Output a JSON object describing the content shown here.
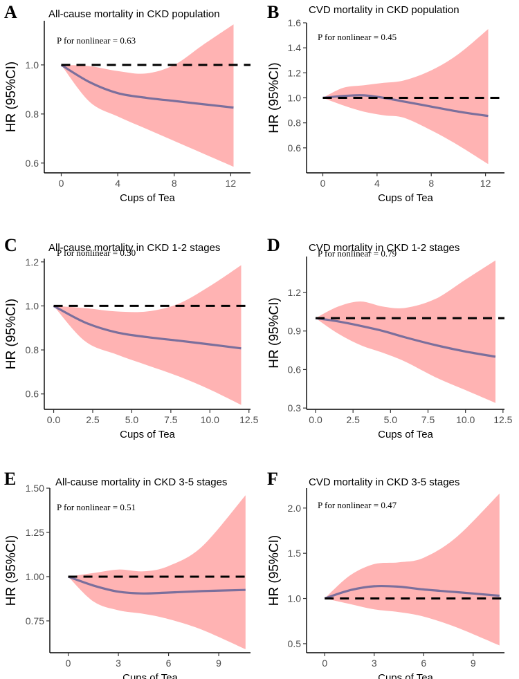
{
  "chart_data": [
    {
      "panel": "A",
      "type": "line",
      "title": "All-cause mortality in CKD population",
      "annotation": "P for nonlinear = 0.63",
      "xlabel": "Cups of Tea",
      "ylabel": "HR (95%CI)",
      "xlim": [
        -1.2,
        13.4
      ],
      "ylim": [
        0.56,
        1.18
      ],
      "xticks": [
        0,
        4,
        8,
        12
      ],
      "xtick_labels": [
        "0",
        "4",
        "8",
        "12"
      ],
      "yticks": [
        0.6,
        0.8,
        1.0
      ],
      "ytick_labels": [
        "0.6",
        "0.8",
        "1.0"
      ],
      "reference": 1.0,
      "x": [
        0,
        2,
        4,
        6,
        8,
        10,
        12.2
      ],
      "hr": [
        1.0,
        0.93,
        0.885,
        0.866,
        0.853,
        0.84,
        0.826
      ],
      "lower": [
        1.0,
        0.85,
        0.79,
        0.74,
        0.69,
        0.64,
        0.585
      ],
      "upper": [
        1.0,
        0.995,
        0.975,
        0.965,
        1.0,
        1.08,
        1.165
      ]
    },
    {
      "panel": "B",
      "type": "line",
      "title": "CVD mortality in CKD population",
      "annotation": "P for nonlinear = 0.45",
      "xlabel": "Cups of Tea",
      "ylabel": "HR (95%CI)",
      "xlim": [
        -1.2,
        13.4
      ],
      "ylim": [
        0.4,
        1.6
      ],
      "xticks": [
        0,
        4,
        8,
        12
      ],
      "xtick_labels": [
        "0",
        "4",
        "8",
        "12"
      ],
      "yticks": [
        0.6,
        0.8,
        1.0,
        1.2,
        1.4,
        1.6
      ],
      "ytick_labels": [
        "0.6",
        "0.8",
        "1.0",
        "1.2",
        "1.4",
        "1.6"
      ],
      "reference": 1.0,
      "x": [
        0,
        1.5,
        3,
        4.5,
        6,
        8,
        10,
        12.2
      ],
      "hr": [
        1.0,
        1.015,
        1.02,
        1.0,
        0.97,
        0.93,
        0.89,
        0.855
      ],
      "lower": [
        1.0,
        0.94,
        0.89,
        0.86,
        0.84,
        0.74,
        0.62,
        0.47
      ],
      "upper": [
        1.0,
        1.08,
        1.1,
        1.12,
        1.14,
        1.22,
        1.35,
        1.55
      ]
    },
    {
      "panel": "C",
      "type": "line",
      "title": "All-cause mortality in CKD 1-2 stages",
      "annotation": "P for nonlinear = 0.50",
      "xlabel": "Cups of Tea",
      "ylabel": "HR (95%CI)",
      "xlim": [
        -0.6,
        12.6
      ],
      "ylim": [
        0.53,
        1.215
      ],
      "xticks": [
        0,
        2.5,
        5,
        7.5,
        10,
        12.5
      ],
      "xtick_labels": [
        "0.0",
        "2.5",
        "5.0",
        "7.5",
        "10.0",
        "12.5"
      ],
      "yticks": [
        0.6,
        0.8,
        1.0,
        1.2
      ],
      "ytick_labels": [
        "0.6",
        "0.8",
        "1.0",
        "1.2"
      ],
      "reference": 1.0,
      "x": [
        0,
        2,
        4,
        6,
        8,
        10,
        12
      ],
      "hr": [
        1.0,
        0.925,
        0.88,
        0.858,
        0.842,
        0.825,
        0.807
      ],
      "lower": [
        1.0,
        0.84,
        0.78,
        0.73,
        0.68,
        0.62,
        0.55
      ],
      "upper": [
        1.0,
        0.99,
        0.975,
        0.975,
        1.01,
        1.09,
        1.185
      ]
    },
    {
      "panel": "D",
      "type": "line",
      "title": "CVD mortality in CKD 1-2 stages",
      "annotation": "P for nonlinear = 0.79",
      "xlabel": "Cups of Tea",
      "ylabel": "HR (95%CI)",
      "xlim": [
        -0.6,
        12.6
      ],
      "ylim": [
        0.29,
        1.48
      ],
      "xticks": [
        0,
        2.5,
        5,
        7.5,
        10,
        12.5
      ],
      "xtick_labels": [
        "0.0",
        "2.5",
        "5.0",
        "7.5",
        "10.0",
        "12.5"
      ],
      "yticks": [
        0.3,
        0.6,
        0.9,
        1.2
      ],
      "ytick_labels": [
        "0.3",
        "0.6",
        "0.9",
        "1.2"
      ],
      "reference": 1.0,
      "x": [
        0,
        1.5,
        3,
        4.5,
        6,
        8,
        10,
        12
      ],
      "hr": [
        1.0,
        0.975,
        0.94,
        0.9,
        0.85,
        0.79,
        0.74,
        0.7
      ],
      "lower": [
        1.0,
        0.88,
        0.79,
        0.73,
        0.66,
        0.54,
        0.44,
        0.34
      ],
      "upper": [
        1.0,
        1.09,
        1.13,
        1.09,
        1.08,
        1.15,
        1.3,
        1.45
      ]
    },
    {
      "panel": "E",
      "type": "line",
      "title": "All-cause mortality in CKD 3-5 stages",
      "annotation": "P for nonlinear = 0.51",
      "xlabel": "Cups of Tea",
      "ylabel": "HR (95%CI)",
      "xlim": [
        -1.1,
        10.9
      ],
      "ylim": [
        0.57,
        1.5
      ],
      "xticks": [
        0,
        3,
        6,
        9
      ],
      "xtick_labels": [
        "0",
        "3",
        "6",
        "9"
      ],
      "yticks": [
        0.75,
        1.0,
        1.25,
        1.5
      ],
      "ytick_labels": [
        "0.75",
        "1.00",
        "1.25",
        "1.50"
      ],
      "reference": 1.0,
      "x": [
        0,
        1.5,
        3,
        4.5,
        6,
        8,
        10.6
      ],
      "hr": [
        1.0,
        0.95,
        0.915,
        0.905,
        0.91,
        0.918,
        0.925
      ],
      "lower": [
        1.0,
        0.86,
        0.81,
        0.79,
        0.76,
        0.7,
        0.59
      ],
      "upper": [
        1.0,
        1.02,
        1.04,
        1.03,
        1.06,
        1.17,
        1.46
      ]
    },
    {
      "panel": "F",
      "type": "line",
      "title": "CVD mortality in CKD 3-5 stages",
      "annotation": "P for nonlinear = 0.47",
      "xlabel": "Cups of Tea",
      "ylabel": "HR (95%CI)",
      "xlim": [
        -1.1,
        10.9
      ],
      "ylim": [
        0.4,
        2.22
      ],
      "xticks": [
        0,
        3,
        6,
        9
      ],
      "xtick_labels": [
        "0",
        "3",
        "6",
        "9"
      ],
      "yticks": [
        0.5,
        1.0,
        1.5,
        2.0
      ],
      "ytick_labels": [
        "0.5",
        "1.0",
        "1.5",
        "2.0"
      ],
      "reference": 1.0,
      "x": [
        0,
        1.5,
        3,
        4.5,
        6,
        8,
        10.6
      ],
      "hr": [
        1.0,
        1.09,
        1.135,
        1.13,
        1.1,
        1.07,
        1.03
      ],
      "lower": [
        1.0,
        0.94,
        0.88,
        0.85,
        0.8,
        0.68,
        0.48
      ],
      "upper": [
        1.0,
        1.25,
        1.38,
        1.4,
        1.45,
        1.68,
        2.16
      ]
    }
  ]
}
